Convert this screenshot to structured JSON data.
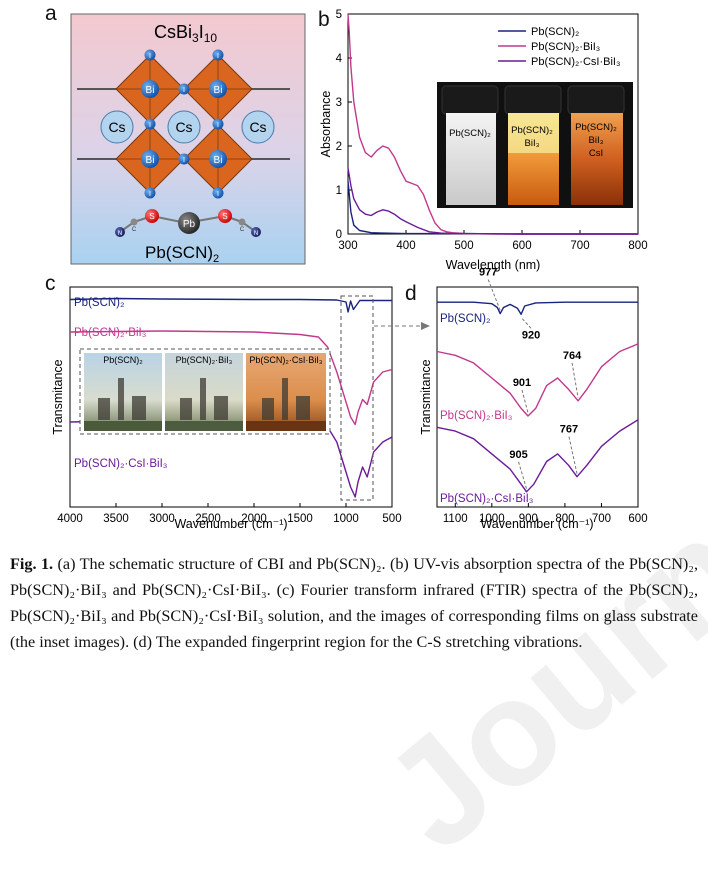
{
  "panel_labels": {
    "a": "a",
    "b": "b",
    "c": "c",
    "d": "d"
  },
  "panel_a": {
    "title_main": "CsBi",
    "title_s1": "3",
    "title_m2": "I",
    "title_s2": "10",
    "formula_main": "Pb(SCN)",
    "formula_sub": "2",
    "atoms": {
      "bi": "Bi",
      "i": "I",
      "cs": "Cs",
      "pb": "Pb",
      "s": "S",
      "c": "C",
      "n": "N"
    }
  },
  "colors": {
    "pb": "#1a237e",
    "pb_bi": "#c2388c",
    "pb_csi_bi": "#6a1b9a",
    "octa": "#d9651e",
    "bi": "#1565c0",
    "cs": "#b3d4ef"
  },
  "chart_data": [
    {
      "type": "line",
      "panel": "b",
      "xlabel": "Wavelength (nm)",
      "ylabel": "Absorbance",
      "xlim": [
        300,
        800
      ],
      "ylim": [
        0,
        5
      ],
      "xticks": [
        300,
        400,
        500,
        600,
        700,
        800
      ],
      "yticks": [
        0,
        1,
        2,
        3,
        4,
        5
      ],
      "legend_position": "top-right",
      "series": [
        {
          "name": "Pb(SCN)₂",
          "x": [
            300,
            305,
            310,
            320,
            340,
            360,
            400,
            450,
            500,
            600,
            700,
            800
          ],
          "y": [
            1.2,
            0.5,
            0.2,
            0.08,
            0.03,
            0.02,
            0.01,
            0.01,
            0.01,
            0,
            0,
            0
          ]
        },
        {
          "name": "Pb(SCN)₂·BiI₃",
          "x": [
            300,
            302,
            305,
            310,
            320,
            330,
            340,
            350,
            360,
            370,
            380,
            390,
            400,
            410,
            420,
            430,
            440,
            450,
            460,
            470,
            480,
            490,
            500,
            550,
            600,
            700,
            800
          ],
          "y": [
            5,
            4.6,
            3.8,
            3.0,
            2.2,
            1.85,
            1.75,
            1.9,
            2.0,
            1.95,
            1.75,
            1.45,
            1.2,
            1.15,
            1.1,
            0.9,
            0.55,
            0.25,
            0.1,
            0.05,
            0.03,
            0.02,
            0.01,
            0,
            0,
            0,
            0
          ]
        },
        {
          "name": "Pb(SCN)₂·CsI·BiI₃",
          "x": [
            300,
            305,
            310,
            320,
            330,
            340,
            350,
            360,
            370,
            380,
            390,
            400,
            420,
            440,
            460,
            480,
            500,
            600,
            800
          ],
          "y": [
            1.5,
            1.1,
            0.8,
            0.55,
            0.45,
            0.42,
            0.5,
            0.55,
            0.52,
            0.45,
            0.35,
            0.28,
            0.15,
            0.05,
            0.02,
            0.01,
            0.01,
            0,
            0
          ]
        }
      ],
      "inset_labels": [
        {
          "l1": "Pb(SCN)₂",
          "l2": "",
          "l3": ""
        },
        {
          "l1": "Pb(SCN)₂",
          "l2": "BiI₃",
          "l3": ""
        },
        {
          "l1": "Pb(SCN)₂",
          "l2": "BiI₃",
          "l3": "CsI"
        }
      ]
    },
    {
      "type": "line",
      "panel": "c",
      "xlabel": "Wavenumber (cm⁻¹)",
      "ylabel": "Transmitance",
      "xlim": [
        4000,
        500
      ],
      "xticks": [
        4000,
        3500,
        3000,
        2500,
        2000,
        1500,
        1000,
        500
      ],
      "series": [
        {
          "name": "Pb(SCN)₂",
          "x": [
            4000,
            3500,
            3000,
            2000,
            1500,
            1100,
            1000,
            977,
            950,
            920,
            850,
            700,
            500
          ],
          "y": [
            2.95,
            2.97,
            2.96,
            2.95,
            2.95,
            2.94,
            2.9,
            2.7,
            2.92,
            2.75,
            2.93,
            2.93,
            2.93
          ]
        },
        {
          "name": "Pb(SCN)₂·BiI₃",
          "x": [
            4000,
            3000,
            2000,
            1500,
            1300,
            1200,
            1100,
            1000,
            950,
            900,
            870,
            820,
            770,
            700,
            600,
            500
          ],
          "y": [
            2.3,
            2.32,
            2.3,
            2.25,
            2.2,
            2.0,
            1.5,
            0.9,
            0.6,
            0.45,
            0.7,
            0.95,
            0.85,
            1.3,
            1.5,
            1.55
          ]
        },
        {
          "name": "Pb(SCN)₂·CsI·BiI₃",
          "x": [
            4000,
            3500,
            3000,
            2000,
            1500,
            1250,
            1200,
            1100,
            1000,
            950,
            900,
            870,
            820,
            770,
            700,
            600,
            500
          ],
          "y": [
            0.5,
            0.52,
            0.5,
            0.48,
            0.47,
            0.46,
            0.4,
            0.1,
            -0.5,
            -0.8,
            -1.0,
            -0.7,
            -0.4,
            -0.6,
            -0.1,
            0.1,
            0.2
          ]
        }
      ],
      "inset_labels": [
        "Pb(SCN)₂",
        "Pb(SCN)₂·BiI₃",
        "Pb(SCN)₂·CsI·BiI₃"
      ]
    },
    {
      "type": "line",
      "panel": "d",
      "xlabel": "Wavenumber (cm⁻¹)",
      "ylabel": "Transmitance",
      "xlim": [
        1150,
        600
      ],
      "xticks": [
        1100,
        1000,
        900,
        800,
        700,
        600
      ],
      "series": [
        {
          "name": "Pb(SCN)₂",
          "x": [
            1150,
            1050,
            1000,
            985,
            977,
            968,
            950,
            930,
            920,
            910,
            880,
            800,
            700,
            600
          ],
          "y": [
            3.0,
            3.0,
            2.98,
            2.93,
            2.85,
            2.93,
            2.97,
            2.92,
            2.84,
            2.95,
            2.99,
            3.0,
            3.0,
            3.0
          ]
        },
        {
          "name": "Pb(SCN)₂·BiI₃",
          "x": [
            1150,
            1100,
            1050,
            1000,
            950,
            920,
            901,
            880,
            850,
            820,
            790,
            764,
            740,
            700,
            650,
            600
          ],
          "y": [
            2.35,
            2.3,
            2.2,
            2.0,
            1.8,
            1.6,
            1.5,
            1.6,
            1.9,
            2.0,
            1.85,
            1.7,
            1.85,
            2.15,
            2.35,
            2.45
          ]
        },
        {
          "name": "Pb(SCN)₂·CsI·BiI₃",
          "x": [
            1150,
            1100,
            1050,
            1000,
            950,
            920,
            905,
            885,
            850,
            820,
            790,
            767,
            740,
            700,
            650,
            600
          ],
          "y": [
            1.35,
            1.3,
            1.2,
            1.0,
            0.8,
            0.6,
            0.5,
            0.6,
            0.9,
            1.0,
            0.85,
            0.7,
            0.85,
            1.1,
            1.3,
            1.45
          ]
        }
      ],
      "annotations": [
        {
          "text": "977",
          "series": 0,
          "x": 977
        },
        {
          "text": "920",
          "series": 0,
          "x": 920
        },
        {
          "text": "901",
          "series": 1,
          "x": 901
        },
        {
          "text": "764",
          "series": 1,
          "x": 764
        },
        {
          "text": "905",
          "series": 2,
          "x": 905
        },
        {
          "text": "767",
          "series": 2,
          "x": 767
        }
      ]
    }
  ],
  "caption": {
    "fig": "Fig. 1.",
    "text": " (a) The schematic structure of CBI and Pb(SCN)₂. (b) UV-vis absorption spectra of the Pb(SCN)₂, Pb(SCN)₂·BiI₃ and Pb(SCN)₂·CsI·BiI₃. (c) Fourier transform infrared (FTIR) spectra of the Pb(SCN)₂, Pb(SCN)₂·BiI₃ and Pb(SCN)₂·CsI·BiI₃ solution, and the images of corresponding films on glass substrate (the inset images). (d) The expanded fingerprint region for the C-S stretching vibrations."
  },
  "watermark": "Journal Pre-proofs"
}
